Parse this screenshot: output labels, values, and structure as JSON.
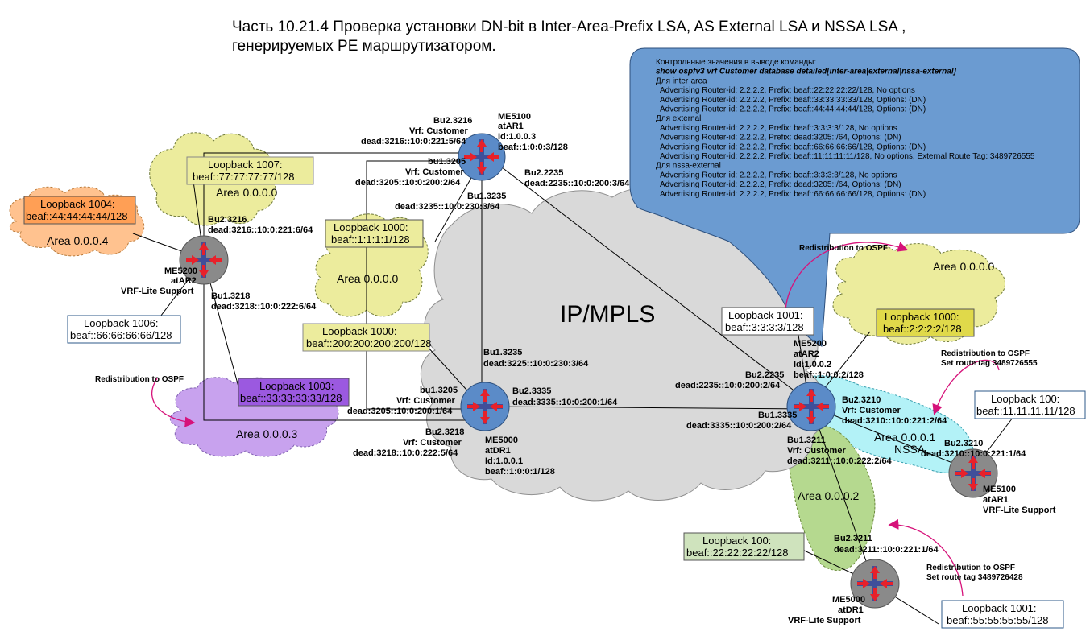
{
  "title": {
    "line1": "Часть 10.21.4 Проверка установки DN-bit в Inter-Area-Prefix LSA, AS External LSA и NSSA LSA ,",
    "line2": "генерируемых PE маршрутизатором."
  },
  "callout": {
    "lines": [
      {
        "text": "Контрольные значения в выводе команды:",
        "style": "normal"
      },
      {
        "text": "show ospfv3 vrf Customer database detailed[inter-area|external|nssa-external]",
        "style": "bold-italic"
      },
      {
        "text": "Для inter-area",
        "style": "normal"
      },
      {
        "text": "  Advertising Router-id: 2.2.2.2, Prefix: beaf::22:22:22:22/128, No options",
        "style": "normal"
      },
      {
        "text": "  Advertising Router-id: 2.2.2.2, Prefix: beaf::33:33:33:33/128, Options: (DN)",
        "style": "normal"
      },
      {
        "text": "  Advertising Router-id: 2.2.2.2, Prefix: beaf::44:44:44:44/128, Options: (DN)",
        "style": "normal"
      },
      {
        "text": "Для external",
        "style": "normal"
      },
      {
        "text": "  Advertising Router-id: 2.2.2.2, Prefix: beaf::3:3:3:3/128, No options",
        "style": "normal"
      },
      {
        "text": "  Advertising Router-id: 2.2.2.2, Prefix: dead:3205::/64, Options: (DN)",
        "style": "normal"
      },
      {
        "text": "  Advertising Router-id: 2.2.2.2, Prefix: beaf::66:66:66:66/128, Options: (DN)",
        "style": "normal"
      },
      {
        "text": "  Advertising Router-id: 2.2.2.2, Prefix: beaf::11:11:11:11/128, No options, External Route Tag: 3489726555",
        "style": "normal"
      },
      {
        "text": "Для nssa-external",
        "style": "normal"
      },
      {
        "text": "  Advertising Router-id: 2.2.2.2, Prefix: beaf::3:3:3:3/128, No options",
        "style": "normal"
      },
      {
        "text": "  Advertising Router-id: 2.2.2.2, Prefix: dead:3205::/64, Options: (DN)",
        "style": "normal"
      },
      {
        "text": "  Advertising Router-id: 2.2.2.2, Prefix: beaf::66:66:66:66/128, Options: (DN)",
        "style": "normal"
      }
    ]
  },
  "core": {
    "label": "IP/MPLS"
  },
  "areas": {
    "a0_top": "Area 0.0.0.0",
    "a0_mid": "Area 0.0.0.0",
    "a4": "Area 0.0.0.4",
    "a3": "Area 0.0.0.3",
    "a0_right": "Area 0.0.0.0",
    "a1_line1": "Area 0.0.0.1",
    "a1_line2": "NSSA",
    "a2": "Area 0.0.0.2"
  },
  "loopbacks": {
    "lb1007": {
      "l1": "Loopback 1007:",
      "l2": "beaf::77:77:77:77/128"
    },
    "lb1004": {
      "l1": "Loopback 1004:",
      "l2": "beaf::44:44:44:44/128"
    },
    "lb1000_ar1": {
      "l1": "Loopback 1000:",
      "l2": "beaf::1:1:1:1/128"
    },
    "lb1000_dr1": {
      "l1": "Loopback 1000:",
      "l2": "beaf::200:200:200:200/128"
    },
    "lb1006": {
      "l1": "Loopback 1006:",
      "l2": "beaf::66:66:66:66/128"
    },
    "lb1003": {
      "l1": "Loopback 1003:",
      "l2": "beaf::33:33:33:33/128"
    },
    "lb1001_ar2": {
      "l1": "Loopback 1001:",
      "l2": "beaf::3:3:3:3/128"
    },
    "lb1000_ar2": {
      "l1": "Loopback 1000:",
      "l2": "beaf::2:2:2:2/128"
    },
    "lb100_ar1": {
      "l1": "Loopback 100:",
      "l2": "beaf::11.11.11.11/128"
    },
    "lb100_dr1": {
      "l1": "Loopback 100:",
      "l2": "beaf::22:22:22:22/128"
    },
    "lb1001_dr1": {
      "l1": "Loopback 1001:",
      "l2": "beaf::55:55:55:55/128"
    }
  },
  "redistribution": {
    "left": "Redistribution to OSPF",
    "top_right": "Redistribution to OSPF",
    "ar1_l1": "Redistribution to OSPF",
    "ar1_l2": "Set route tag  3489726555",
    "dr1_l1": "Redistribution to OSPF",
    "dr1_l2": "Set route tag 3489726428"
  },
  "routers": {
    "me5100_ar1": {
      "name": "ME5100",
      "host": "atAR1",
      "id": "Id:1.0.0.3",
      "addr": "beaf::1:0:0:3/128"
    },
    "me5000_dr1": {
      "name": "ME5000",
      "host": "atDR1",
      "id": "Id:1.0.0.1",
      "addr": "beaf::1:0:0:1/128"
    },
    "me5200_ar2": {
      "name": "ME5200",
      "host": "atAR2",
      "id": "Id:1.0.0.2",
      "addr": "beaf::1:0:0:2/128"
    },
    "ce_ar2": {
      "name": "ME5200",
      "host": "atAR2",
      "note": "VRF-Lite Support"
    },
    "ce_ar1": {
      "name": "ME5100",
      "host": "atAR1",
      "note": "VRF-Lite Support"
    },
    "ce_dr1": {
      "name": "ME5000",
      "host": "atDR1",
      "note": "VRF-Lite Support"
    }
  },
  "interfaces": {
    "ar1_bu2_3216": {
      "l1": "Bu2.3216",
      "l2": "Vrf: Customer",
      "l3": "dead:3216::10:0:221:5/64"
    },
    "ar1_bu1_3205": {
      "l1": "bu1.3205",
      "l2": "Vrf: Customer",
      "l3": "dead:3205::10:0:200:2/64"
    },
    "ar1_bu2_2235": {
      "l1": "Bu2.2235",
      "l2": "dead:2235::10:0:200:3/64"
    },
    "ar1_bu1_3235": {
      "l1": "Bu1.3235",
      "l2": "dead:3235::10:0:230:3/64"
    },
    "cear2_bu2_3216": {
      "l1": "Bu2.3216",
      "l2": "dead:3216::10:0:221:6/64"
    },
    "cear2_bu1_3218": {
      "l1": "Bu1.3218",
      "l2": "dead:3218::10:0:222:6/64"
    },
    "dr1_bu1_3235": {
      "l1": "Bu1.3235",
      "l2": "dead:3225::10:0:230:3/64"
    },
    "dr1_bu1_3205": {
      "l1": "bu1.3205",
      "l2": "Vrf: Customer",
      "l3": "dead:3205::10:0:200:1/64"
    },
    "dr1_bu2_3335": {
      "l1": "Bu2.3335",
      "l2": "dead:3335::10:0:200:1/64"
    },
    "dr1_bu2_3218": {
      "l1": "Bu2.3218",
      "l2": "Vrf: Customer",
      "l3": "dead:3218::10:0:222:5/64"
    },
    "ar2_bu2_2235": {
      "l1": "Bu2.2235",
      "l2": "dead:2235::10:0:200:2/64"
    },
    "ar2_bu1_3335": {
      "l1": "Bu1.3335",
      "l2": "dead:3335::10:0:200:2/64"
    },
    "ar2_bu2_3210": {
      "l1": "Bu2.3210",
      "l2": "Vrf: Customer",
      "l3": "dead:3210::10:0:221:2/64"
    },
    "ar2_bu1_3211": {
      "l1": "Bu1.3211",
      "l2": "Vrf: Customer",
      "l3": "dead:3211::10:0:222:2/64"
    },
    "cear1_bu2_3210": {
      "l1": "Bu2.3210",
      "l2": "dead:3210::10:0:221:1/64"
    },
    "cedr1_bu2_3211": {
      "l1": "Bu2.3211",
      "l2": "dead:3211::10:0:221:1/64"
    }
  },
  "colors": {
    "callout": "#6b9bd1",
    "core_cloud": "#d9d9d9",
    "yellow_area": "#ecec9d",
    "orange_area": "#ffc28f",
    "purple_area": "#c8a2ee",
    "cyan_area": "#b3f2f7",
    "green_area": "#b5d98f",
    "router_pe": "#5b8bc8",
    "router_ce": "#8a8a8a",
    "arrow_red": "#e8212a",
    "pink_arrow": "#d6127a"
  }
}
